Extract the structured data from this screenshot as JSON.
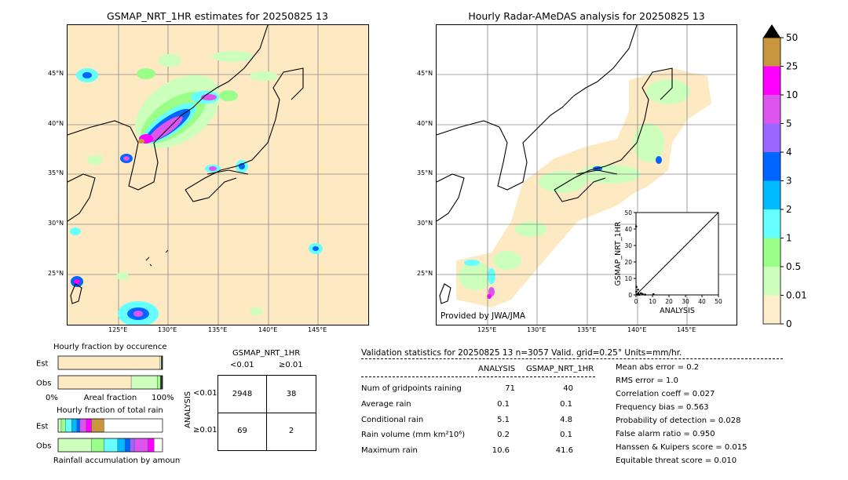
{
  "left_map": {
    "title": "GSMAP_NRT_1HR estimates for 20250825 13",
    "lat_labels": [
      "45°N",
      "40°N",
      "35°N",
      "30°N",
      "25°N"
    ],
    "lon_labels": [
      "125°E",
      "130°E",
      "135°E",
      "140°E",
      "145°E"
    ]
  },
  "right_map": {
    "title": "Hourly Radar-AMeDAS analysis for 20250825 13",
    "lat_labels": [
      "45°N",
      "40°N",
      "35°N",
      "30°N",
      "25°N"
    ],
    "lon_labels": [
      "125°E",
      "130°E",
      "135°E",
      "140°E",
      "145°E"
    ],
    "credit": "Provided by JWA/JMA"
  },
  "colorbar": {
    "labels": [
      "50",
      "25",
      "10",
      "5",
      "4",
      "3",
      "2",
      "1",
      "0.5",
      "0.01",
      "0"
    ],
    "colors": [
      "#c8963c",
      "#ff00ff",
      "#dd55ee",
      "#9966ff",
      "#0066ff",
      "#00bbff",
      "#66ffff",
      "#99ff88",
      "#ccffbb",
      "#ffeecc"
    ]
  },
  "chart_data": [
    {
      "type": "scatter",
      "title": "",
      "xlabel": "ANALYSIS",
      "ylabel": "GSMAP_NRT_1HR",
      "xlim": [
        0,
        50
      ],
      "ylim": [
        0,
        50
      ],
      "x_ticks": [
        "0",
        "10",
        "20",
        "30",
        "40",
        "50"
      ],
      "y_ticks": [
        "0",
        "10",
        "20",
        "30",
        "40",
        "50"
      ],
      "points": [
        {
          "x": 0.5,
          "y": 0.3
        },
        {
          "x": 1.0,
          "y": 0.2
        },
        {
          "x": 1.5,
          "y": 0.8
        },
        {
          "x": 2.0,
          "y": 0.1
        },
        {
          "x": 3.0,
          "y": 1.0
        },
        {
          "x": 0.2,
          "y": 2.0
        },
        {
          "x": 4.0,
          "y": 0.5
        },
        {
          "x": 0.3,
          "y": 4.8
        },
        {
          "x": 5.5,
          "y": 0.2
        },
        {
          "x": 10.6,
          "y": 0.4
        },
        {
          "x": 0.1,
          "y": 41.6
        },
        {
          "x": 1.2,
          "y": 3.2
        }
      ]
    },
    {
      "type": "bar",
      "title": "Hourly fraction by occurence",
      "categories": [
        "Est",
        "Obs"
      ],
      "xlabel": "Areal fraction",
      "x_ticks": [
        "0%",
        "100%"
      ],
      "stacks": [
        [
          {
            "color": "#fde9c2",
            "value": 0.975
          },
          {
            "color": "#ccffbb",
            "value": 0.012
          },
          {
            "color": "#333333",
            "value": 0.013
          }
        ],
        [
          {
            "color": "#fde9c2",
            "value": 0.7
          },
          {
            "color": "#ccffbb",
            "value": 0.25
          },
          {
            "color": "#99ff88",
            "value": 0.03
          },
          {
            "color": "#333333",
            "value": 0.02
          }
        ]
      ]
    },
    {
      "type": "bar",
      "title": "Hourly fraction of total rain",
      "categories": [
        "Est",
        "Obs"
      ],
      "xlabel": "Rainfall accumulation by amount",
      "stacks": [
        [
          {
            "color": "#ccffbb",
            "value": 0.03
          },
          {
            "color": "#99ff88",
            "value": 0.04
          },
          {
            "color": "#66ffff",
            "value": 0.06
          },
          {
            "color": "#00bbff",
            "value": 0.05
          },
          {
            "color": "#0066ff",
            "value": 0.03
          },
          {
            "color": "#dd55ee",
            "value": 0.06
          },
          {
            "color": "#ff00ff",
            "value": 0.05
          },
          {
            "color": "#c8963c",
            "value": 0.12
          }
        ],
        [
          {
            "color": "#ccffbb",
            "value": 0.32
          },
          {
            "color": "#99ff88",
            "value": 0.12
          },
          {
            "color": "#66ffff",
            "value": 0.13
          },
          {
            "color": "#00bbff",
            "value": 0.07
          },
          {
            "color": "#0066ff",
            "value": 0.05
          },
          {
            "color": "#9966ff",
            "value": 0.04
          },
          {
            "color": "#dd55ee",
            "value": 0.13
          },
          {
            "color": "#ff00ff",
            "value": 0.06
          }
        ]
      ]
    }
  ],
  "contingency": {
    "col_header": "GSMAP_NRT_1HR",
    "col_labels": [
      "<0.01",
      "≥0.01"
    ],
    "row_header": "ANALYSIS",
    "row_labels": [
      "<0.01",
      "≥0.01"
    ],
    "cells": [
      "2948",
      "38",
      "69",
      "2"
    ]
  },
  "validation": {
    "header": "Validation statistics for 20250825 13  n=3057 Valid. grid=0.25°  Units=mm/hr.",
    "col_analysis": "ANALYSIS",
    "col_gsmap": "GSMAP_NRT_1HR",
    "rows": [
      {
        "label": "Num of gridpoints raining",
        "analysis": "71",
        "gsmap": "40"
      },
      {
        "label": "Average rain",
        "analysis": "0.1",
        "gsmap": "0.1"
      },
      {
        "label": "Conditional rain",
        "analysis": "5.1",
        "gsmap": "4.8"
      },
      {
        "label": "Rain volume (mm km²10⁶)",
        "analysis": "0.2",
        "gsmap": "0.1"
      },
      {
        "label": "Maximum rain",
        "analysis": "10.6",
        "gsmap": "41.6"
      }
    ],
    "scores": [
      "Mean abs error =    0.2",
      "RMS error =    1.0",
      "Correlation coeff =  0.027",
      "Frequency bias =  0.563",
      "Probability of detection =  0.028",
      "False alarm ratio =  0.950",
      "Hanssen & Kuipers score =  0.015",
      "Equitable threat score =  0.010"
    ]
  }
}
